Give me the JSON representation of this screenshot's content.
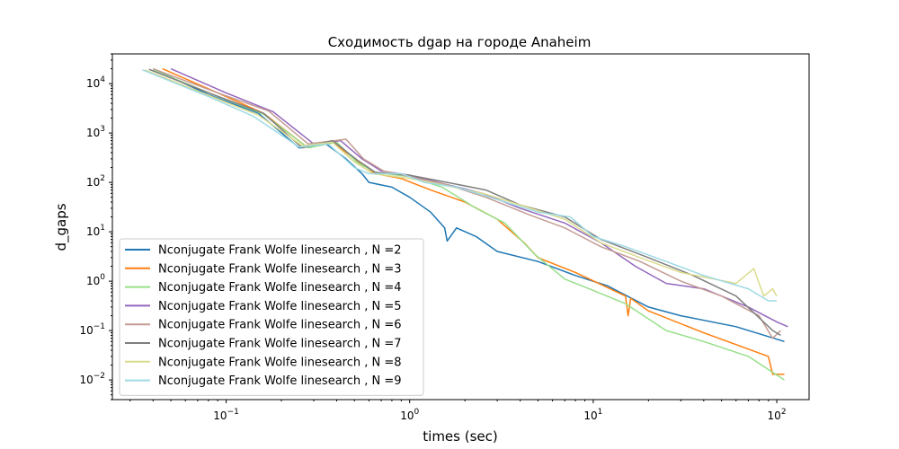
{
  "chart_data": {
    "type": "line",
    "title": "Сходимость dgap на городе Anaheim",
    "xlabel": "times (sec)",
    "ylabel": "d_gaps",
    "xscale": "log",
    "yscale": "log",
    "xlim": [
      0.024,
      150
    ],
    "ylim": [
      0.004,
      40000
    ],
    "xticks": [
      {
        "value": 0.1,
        "base": "10",
        "exp": "−1"
      },
      {
        "value": 1,
        "base": "10",
        "exp": "0"
      },
      {
        "value": 10,
        "base": "10",
        "exp": "1"
      },
      {
        "value": 100,
        "base": "10",
        "exp": "2"
      }
    ],
    "yticks": [
      {
        "value": 0.01,
        "base": "10",
        "exp": "−2"
      },
      {
        "value": 0.1,
        "base": "10",
        "exp": "−1"
      },
      {
        "value": 1,
        "base": "10",
        "exp": "0"
      },
      {
        "value": 10,
        "base": "10",
        "exp": "1"
      },
      {
        "value": 100,
        "base": "10",
        "exp": "2"
      },
      {
        "value": 1000,
        "base": "10",
        "exp": "3"
      },
      {
        "value": 10000,
        "base": "10",
        "exp": "4"
      }
    ],
    "grid": false,
    "legend_position": "lower-left",
    "series": [
      {
        "name": "Nconjugate Frank Wolfe linesearch , N =2",
        "color": "#1f77b4",
        "points": [
          [
            0.04,
            20000
          ],
          [
            0.08,
            6000
          ],
          [
            0.15,
            2500
          ],
          [
            0.25,
            500
          ],
          [
            0.35,
            600
          ],
          [
            0.45,
            300
          ],
          [
            0.55,
            150
          ],
          [
            0.6,
            100
          ],
          [
            0.8,
            80
          ],
          [
            1.0,
            50
          ],
          [
            1.3,
            25
          ],
          [
            1.55,
            12
          ],
          [
            1.6,
            6.5
          ],
          [
            1.8,
            12
          ],
          [
            2.3,
            8
          ],
          [
            3,
            4
          ],
          [
            5,
            2.5
          ],
          [
            8,
            1.3
          ],
          [
            12,
            0.8
          ],
          [
            20,
            0.3
          ],
          [
            30,
            0.2
          ],
          [
            60,
            0.12
          ],
          [
            110,
            0.06
          ]
        ]
      },
      {
        "name": "Nconjugate Frank Wolfe linesearch , N =3",
        "color": "#ff7f0e",
        "points": [
          [
            0.045,
            20000
          ],
          [
            0.09,
            6500
          ],
          [
            0.16,
            2500
          ],
          [
            0.27,
            550
          ],
          [
            0.38,
            650
          ],
          [
            0.5,
            300
          ],
          [
            0.65,
            150
          ],
          [
            0.9,
            120
          ],
          [
            1.3,
            70
          ],
          [
            2,
            40
          ],
          [
            3,
            18
          ],
          [
            4.2,
            6
          ],
          [
            5,
            3
          ],
          [
            8,
            1.5
          ],
          [
            15,
            0.5
          ],
          [
            15.5,
            0.2
          ],
          [
            16,
            0.45
          ],
          [
            20,
            0.25
          ],
          [
            40,
            0.09
          ],
          [
            90,
            0.03
          ],
          [
            95,
            0.013
          ],
          [
            110,
            0.013
          ]
        ]
      },
      {
        "name": "Nconjugate Frank Wolfe linesearch , N =4",
        "color": "#98df8a",
        "points": [
          [
            0.04,
            19000
          ],
          [
            0.085,
            6000
          ],
          [
            0.16,
            2400
          ],
          [
            0.28,
            500
          ],
          [
            0.4,
            650
          ],
          [
            0.52,
            250
          ],
          [
            0.65,
            160
          ],
          [
            1.0,
            130
          ],
          [
            1.5,
            80
          ],
          [
            2.3,
            30
          ],
          [
            3.3,
            15
          ],
          [
            4.8,
            3.5
          ],
          [
            7,
            1.1
          ],
          [
            10,
            0.65
          ],
          [
            15,
            0.35
          ],
          [
            25,
            0.1
          ],
          [
            40,
            0.06
          ],
          [
            70,
            0.03
          ],
          [
            110,
            0.01
          ]
        ]
      },
      {
        "name": "Nconjugate Frank Wolfe linesearch , N =5",
        "color": "#9467bd",
        "points": [
          [
            0.05,
            20000
          ],
          [
            0.1,
            6500
          ],
          [
            0.18,
            2700
          ],
          [
            0.3,
            600
          ],
          [
            0.42,
            700
          ],
          [
            0.55,
            300
          ],
          [
            0.7,
            170
          ],
          [
            1.0,
            140
          ],
          [
            1.6,
            90
          ],
          [
            2.5,
            60
          ],
          [
            4,
            30
          ],
          [
            7,
            15
          ],
          [
            11,
            6
          ],
          [
            17,
            2
          ],
          [
            25,
            0.9
          ],
          [
            40,
            0.7
          ],
          [
            70,
            0.3
          ],
          [
            100,
            0.15
          ],
          [
            115,
            0.12
          ]
        ]
      },
      {
        "name": "Nconjugate Frank Wolfe linesearch , N =6",
        "color": "#c49c94",
        "points": [
          [
            0.04,
            20000
          ],
          [
            0.09,
            6500
          ],
          [
            0.17,
            2800
          ],
          [
            0.28,
            600
          ],
          [
            0.45,
            750
          ],
          [
            0.56,
            300
          ],
          [
            0.72,
            170
          ],
          [
            1.0,
            130
          ],
          [
            1.6,
            90
          ],
          [
            2.6,
            50
          ],
          [
            4.5,
            22
          ],
          [
            7,
            12
          ],
          [
            11,
            5
          ],
          [
            18,
            2.5
          ],
          [
            30,
            1.0
          ],
          [
            50,
            0.5
          ],
          [
            80,
            0.2
          ],
          [
            95,
            0.07
          ],
          [
            105,
            0.1
          ]
        ]
      },
      {
        "name": "Nconjugate Frank Wolfe linesearch , N =7",
        "color": "#7f7f7f",
        "points": [
          [
            0.038,
            19500
          ],
          [
            0.085,
            6000
          ],
          [
            0.16,
            2500
          ],
          [
            0.26,
            500
          ],
          [
            0.38,
            700
          ],
          [
            0.52,
            280
          ],
          [
            0.65,
            160
          ],
          [
            1.0,
            140
          ],
          [
            1.6,
            100
          ],
          [
            2.6,
            70
          ],
          [
            4,
            35
          ],
          [
            7,
            20
          ],
          [
            11,
            7
          ],
          [
            20,
            3
          ],
          [
            35,
            1.3
          ],
          [
            60,
            0.5
          ],
          [
            95,
            0.1
          ],
          [
            105,
            0.08
          ]
        ]
      },
      {
        "name": "Nconjugate Frank Wolfe linesearch , N =8",
        "color": "#dbdb8d",
        "points": [
          [
            0.036,
            19000
          ],
          [
            0.08,
            5800
          ],
          [
            0.15,
            2300
          ],
          [
            0.26,
            550
          ],
          [
            0.38,
            650
          ],
          [
            0.5,
            260
          ],
          [
            0.63,
            150
          ],
          [
            1.0,
            120
          ],
          [
            1.5,
            90
          ],
          [
            2.5,
            60
          ],
          [
            4,
            35
          ],
          [
            7,
            18
          ],
          [
            11,
            6
          ],
          [
            18,
            3
          ],
          [
            30,
            1.5
          ],
          [
            60,
            0.9
          ],
          [
            75,
            1.8
          ],
          [
            85,
            0.5
          ],
          [
            95,
            0.7
          ],
          [
            100,
            0.5
          ]
        ]
      },
      {
        "name": "Nconjugate Frank Wolfe linesearch , N =9",
        "color": "#9edae5",
        "points": [
          [
            0.035,
            19000
          ],
          [
            0.08,
            5500
          ],
          [
            0.14,
            2200
          ],
          [
            0.25,
            520
          ],
          [
            0.36,
            600
          ],
          [
            0.5,
            200
          ],
          [
            0.6,
            150
          ],
          [
            0.9,
            150
          ],
          [
            1.2,
            100
          ],
          [
            1.8,
            80
          ],
          [
            3,
            45
          ],
          [
            5,
            25
          ],
          [
            7.5,
            20
          ],
          [
            10,
            8
          ],
          [
            15,
            5
          ],
          [
            25,
            2.5
          ],
          [
            40,
            1.3
          ],
          [
            70,
            0.7
          ],
          [
            90,
            0.4
          ],
          [
            100,
            0.4
          ]
        ]
      }
    ]
  }
}
